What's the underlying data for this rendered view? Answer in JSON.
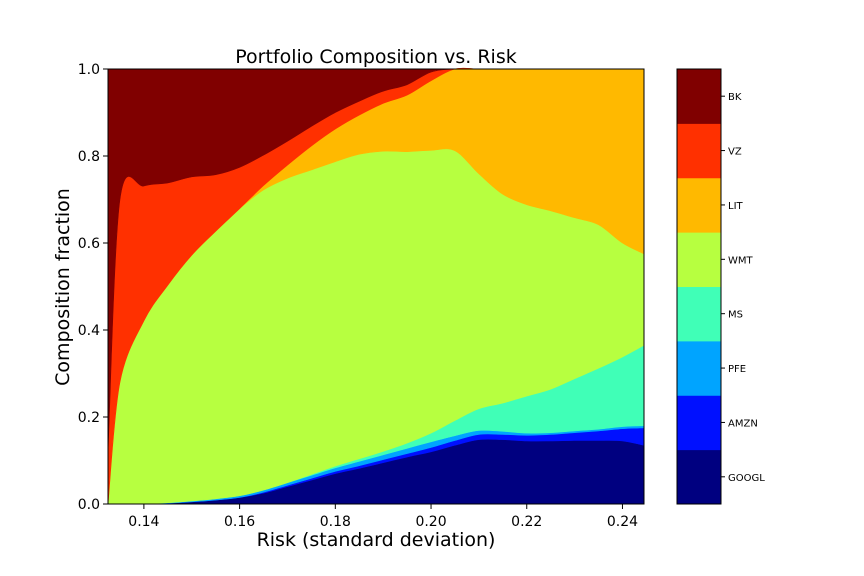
{
  "chart_data": {
    "type": "area",
    "stacked": true,
    "title": "Portfolio Composition vs. Risk",
    "xlabel": "Risk (standard deviation)",
    "ylabel": "Composition fraction",
    "xlim": [
      0.1325,
      0.2445
    ],
    "ylim": [
      0.0,
      1.0
    ],
    "x_ticks": [
      "0.14",
      "0.16",
      "0.18",
      "0.20",
      "0.22",
      "0.24"
    ],
    "y_ticks": [
      "0.0",
      "0.2",
      "0.4",
      "0.6",
      "0.8",
      "1.0"
    ],
    "grid": false,
    "legend": "colorbar at right",
    "x": [
      0.1325,
      0.135,
      0.14,
      0.145,
      0.15,
      0.155,
      0.16,
      0.165,
      0.17,
      0.175,
      0.18,
      0.185,
      0.19,
      0.195,
      0.2,
      0.205,
      0.21,
      0.215,
      0.22,
      0.225,
      0.23,
      0.235,
      0.24,
      0.2445
    ],
    "series": [
      {
        "name": "GOOGL",
        "color": "#000080",
        "values": [
          0.0,
          0.0,
          0.001,
          0.002,
          0.005,
          0.009,
          0.015,
          0.025,
          0.04,
          0.055,
          0.07,
          0.082,
          0.095,
          0.108,
          0.12,
          0.135,
          0.148,
          0.148,
          0.145,
          0.145,
          0.146,
          0.146,
          0.145,
          0.135
        ]
      },
      {
        "name": "AMZN",
        "color": "#0010ff",
        "values": [
          0.0,
          0.0,
          0.0,
          0.0,
          0.0,
          0.0,
          0.0,
          0.002,
          0.003,
          0.004,
          0.005,
          0.006,
          0.007,
          0.008,
          0.01,
          0.011,
          0.012,
          0.012,
          0.013,
          0.015,
          0.018,
          0.022,
          0.028,
          0.04
        ]
      },
      {
        "name": "PFE",
        "color": "#00a4ff",
        "values": [
          0.0,
          0.0,
          0.0,
          0.001,
          0.002,
          0.003,
          0.004,
          0.005,
          0.006,
          0.007,
          0.008,
          0.01,
          0.011,
          0.012,
          0.013,
          0.011,
          0.009,
          0.007,
          0.005,
          0.004,
          0.004,
          0.004,
          0.005,
          0.005
        ]
      },
      {
        "name": "MS",
        "color": "#40ffb7",
        "values": [
          0.0,
          0.0,
          0.0,
          0.0,
          0.0,
          0.0,
          0.0,
          0.0,
          0.0,
          0.002,
          0.004,
          0.006,
          0.008,
          0.012,
          0.02,
          0.035,
          0.05,
          0.065,
          0.085,
          0.1,
          0.12,
          0.14,
          0.16,
          0.185
        ]
      },
      {
        "name": "WMT",
        "color": "#b7ff40",
        "values": [
          0.0,
          0.28,
          0.42,
          0.5,
          0.565,
          0.615,
          0.66,
          0.69,
          0.7,
          0.7,
          0.7,
          0.7,
          0.69,
          0.67,
          0.65,
          0.62,
          0.54,
          0.48,
          0.44,
          0.41,
          0.37,
          0.33,
          0.262,
          0.21
        ]
      },
      {
        "name": "LIT",
        "color": "#ffb900",
        "values": [
          0.0,
          0.0,
          0.0,
          0.0,
          0.0,
          0.0,
          0.0,
          0.01,
          0.03,
          0.055,
          0.075,
          0.09,
          0.11,
          0.13,
          0.16,
          0.19,
          0.241,
          0.288,
          0.312,
          0.326,
          0.342,
          0.358,
          0.4,
          0.425
        ]
      },
      {
        "name": "VZ",
        "color": "#ff3000",
        "values": [
          0.12,
          0.42,
          0.31,
          0.235,
          0.18,
          0.13,
          0.095,
          0.07,
          0.055,
          0.045,
          0.038,
          0.032,
          0.028,
          0.024,
          0.02,
          0.008,
          0.0,
          0.0,
          0.0,
          0.0,
          0.0,
          0.0,
          0.0,
          0.0
        ]
      },
      {
        "name": "BK",
        "color": "#800000",
        "values": [
          0.88,
          0.3,
          0.269,
          0.262,
          0.248,
          0.243,
          0.226,
          0.198,
          0.166,
          0.132,
          0.1,
          0.074,
          0.051,
          0.036,
          0.007,
          0.0,
          0.0,
          0.0,
          0.0,
          0.0,
          0.0,
          0.0,
          0.0,
          0.0
        ]
      }
    ]
  }
}
